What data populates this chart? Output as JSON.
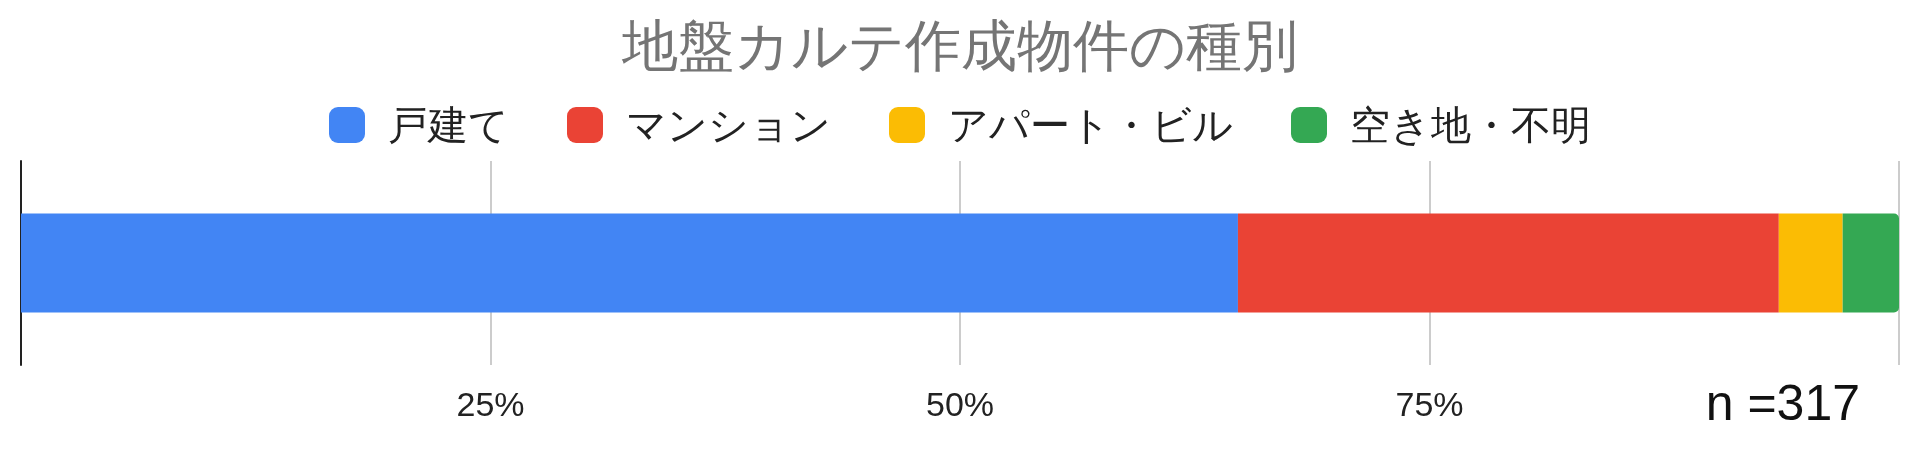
{
  "chart_data": {
    "type": "bar",
    "title": "地盤カルテ作成物件の種別",
    "orientation": "horizontal",
    "stacked": true,
    "categories": [
      null
    ],
    "series": [
      {
        "name": "戸建て",
        "color": "#4285f4",
        "values": [
          64.8
        ]
      },
      {
        "name": "マンション",
        "color": "#ea4335",
        "values": [
          28.8
        ]
      },
      {
        "name": "アパート・ビル",
        "color": "#fbbc04",
        "values": [
          3.4
        ]
      },
      {
        "name": "空き地・不明",
        "color": "#34a853",
        "values": [
          3.0
        ]
      }
    ],
    "xlim": [
      0,
      100
    ],
    "xticks": [
      {
        "value": 0,
        "label": null
      },
      {
        "value": 25,
        "label": "25%"
      },
      {
        "value": 50,
        "label": "50%"
      },
      {
        "value": 75,
        "label": "75%"
      },
      {
        "value": 100,
        "label": null
      }
    ],
    "grid": "x",
    "legend": "top",
    "annotations": [
      "n =317"
    ]
  }
}
